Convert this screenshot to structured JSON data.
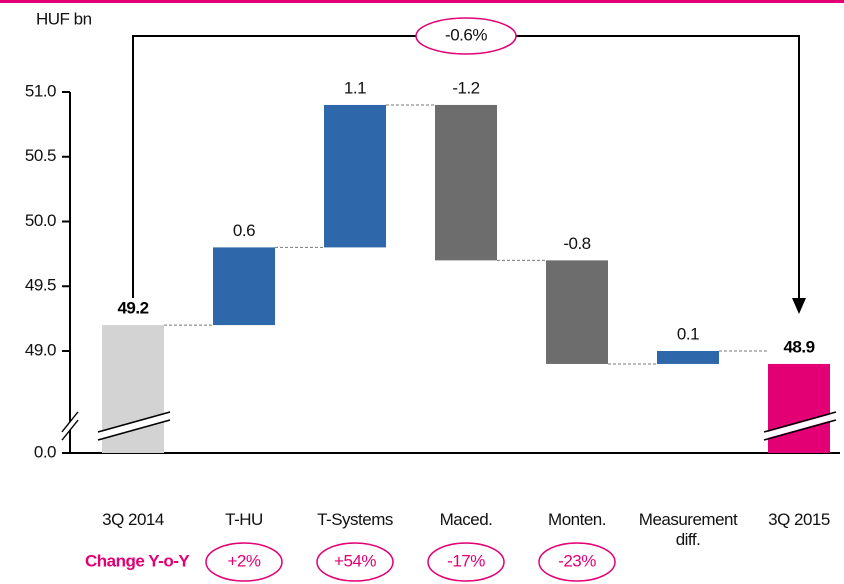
{
  "chart_data": {
    "type": "waterfall",
    "y_label": "HUF bn",
    "categories": [
      "3Q 2014",
      "T-HU",
      "T-Systems",
      "Maced.",
      "Monten.",
      "Measurement diff.",
      "3Q 2015"
    ],
    "values": [
      49.2,
      0.6,
      1.1,
      -1.2,
      -0.8,
      0.1,
      48.9
    ],
    "totals": [
      true,
      false,
      false,
      false,
      false,
      false,
      true
    ],
    "colors": [
      "#d3d3d3",
      "#2e67aa",
      "#2e67aa",
      "#6d6d6d",
      "#6d6d6d",
      "#2e67aa",
      "#e20074"
    ],
    "ylim": [
      0,
      51.0
    ],
    "yticks": [
      {
        "value": 0,
        "label": "0.0"
      },
      {
        "value": 49,
        "label": "49.0"
      },
      49.5,
      {
        "value": 50,
        "label": "50.0"
      },
      50.5,
      {
        "value": 51,
        "label": "51.0"
      }
    ],
    "axis_break": true,
    "total_change": "-0.6%",
    "change_title": "Change Y-o-Y",
    "change_labels": [
      "+2%",
      "+54%",
      "-17%",
      "-23%"
    ]
  }
}
